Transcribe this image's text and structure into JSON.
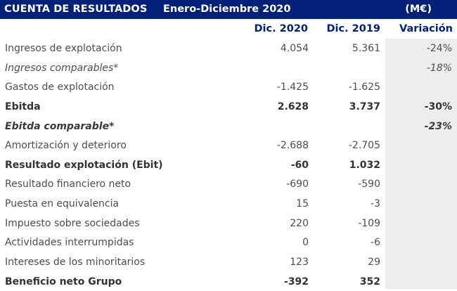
{
  "header": {
    "title": "CUENTA DE RESULTADOS",
    "period": "Enero-Diciembre 2020",
    "unit": "(M€)"
  },
  "columns": {
    "label": "",
    "c1": "Dic. 2020",
    "c2": "Dic. 2019",
    "c3": "Variación"
  },
  "colors": {
    "header_bg": "#04217a",
    "header_text": "#ffffff",
    "column_header_text": "#04217a",
    "variation_shade": "#ededed"
  },
  "rows": [
    {
      "label": "Ingresos de explotación",
      "c1": "4.054",
      "c2": "5.361",
      "c3": "-24%",
      "style": "normal"
    },
    {
      "label": "Ingresos comparables*",
      "c1": "",
      "c2": "",
      "c3": "-18%",
      "style": "ital"
    },
    {
      "label": "Gastos de explotación",
      "c1": "-1.425",
      "c2": "-1.625",
      "c3": "",
      "style": "normal"
    },
    {
      "label": "Ebitda",
      "c1": "2.628",
      "c2": "3.737",
      "c3": "-30%",
      "style": "bold"
    },
    {
      "label": "Ebitda comparable*",
      "c1": "",
      "c2": "",
      "c3": "-23%",
      "style": "italbold"
    },
    {
      "label": "Amortización y deterioro",
      "c1": "-2.688",
      "c2": "-2.705",
      "c3": "",
      "style": "normal"
    },
    {
      "label": "Resultado explotación (Ebit)",
      "c1": "-60",
      "c2": "1.032",
      "c3": "",
      "style": "bold"
    },
    {
      "label": "Resultado financiero neto",
      "c1": "-690",
      "c2": "-590",
      "c3": "",
      "style": "normal"
    },
    {
      "label": "Puesta en equivalencia",
      "c1": "15",
      "c2": "-3",
      "c3": "",
      "style": "normal"
    },
    {
      "label": "Impuesto sobre sociedades",
      "c1": "220",
      "c2": "-109",
      "c3": "",
      "style": "normal"
    },
    {
      "label": "Actividades interrumpidas",
      "c1": "0",
      "c2": "-6",
      "c3": "",
      "style": "normal"
    },
    {
      "label": "Intereses de los minoritarios",
      "c1": "123",
      "c2": "29",
      "c3": "",
      "style": "normal"
    },
    {
      "label": "Beneficio neto Grupo",
      "c1": "-392",
      "c2": "352",
      "c3": "",
      "style": "bold"
    }
  ]
}
